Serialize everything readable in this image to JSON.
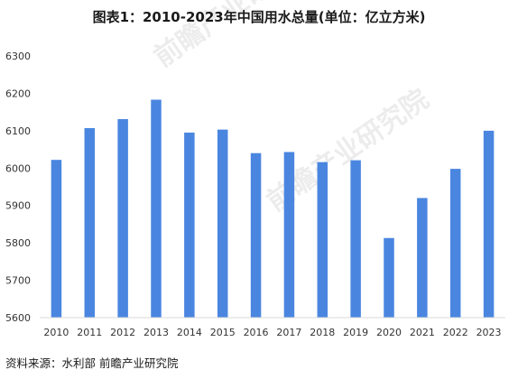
{
  "title": "图表1：2010-2023年中国用水总量(单位：亿立方米)",
  "source": "资料来源：水利部 前瞻产业研究院",
  "watermark_text": "前瞻产业研究院",
  "colors": {
    "bar": "#4a86e0",
    "axis": "#d9d9d9",
    "tick_text": "#333333"
  },
  "chart_data": {
    "type": "bar",
    "title": "图表1：2010-2023年中国用水总量(单位：亿立方米)",
    "xlabel": "",
    "ylabel": "",
    "categories": [
      "2010",
      "2011",
      "2012",
      "2013",
      "2014",
      "2015",
      "2016",
      "2017",
      "2018",
      "2019",
      "2020",
      "2021",
      "2022",
      "2023"
    ],
    "values": [
      6022,
      6107,
      6131,
      6183,
      6095,
      6103,
      6040,
      6043,
      6016,
      6021,
      5813,
      5920,
      5998,
      6100
    ],
    "ylim": [
      5600,
      6300
    ],
    "yticks": [
      5600,
      5700,
      5800,
      5900,
      6000,
      6100,
      6200,
      6300
    ],
    "grid": false,
    "legend": "none"
  }
}
